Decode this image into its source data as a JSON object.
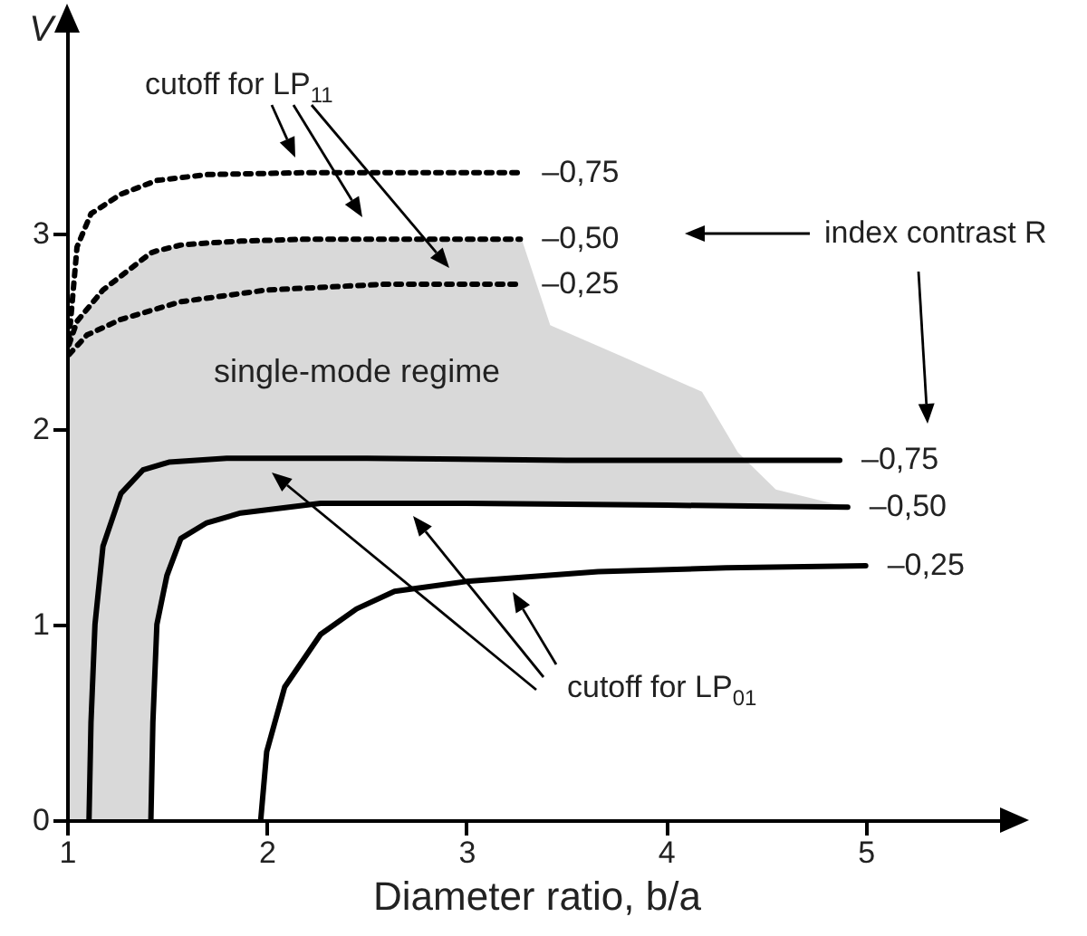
{
  "chart_data": {
    "type": "line",
    "xlabel": "Diameter ratio, b/a",
    "ylabel": "V",
    "xlim": [
      1,
      5.7
    ],
    "ylim": [
      0,
      4.1
    ],
    "xticks": [
      1,
      2,
      3,
      4,
      5
    ],
    "yticks": [
      0,
      1,
      2,
      3
    ],
    "grid": false,
    "annotations": [
      "cutoff for LP$_{11}$",
      "index contrast R",
      "single-mode regime",
      "cutoff for LP$_{01}$",
      {
        "text": "–0,75",
        "x": 4.87,
        "y": 1.84
      },
      {
        "text": "–0,50",
        "x": 4.91,
        "y": 1.6
      },
      {
        "text": "–0,25",
        "x": 5.0,
        "y": 1.3
      },
      {
        "text": "–0,75",
        "x": 3.27,
        "y": 3.31
      },
      {
        "text": "–0,50",
        "x": 3.27,
        "y": 2.97
      },
      {
        "text": "–0,25",
        "x": 3.27,
        "y": 2.74
      }
    ],
    "series": [
      {
        "color": "#000000",
        "line_style": "solid",
        "x": [
          1.11,
          1.12,
          1.14,
          1.18,
          1.27,
          1.38,
          1.51,
          1.8,
          2.5,
          3.5,
          4.87
        ],
        "values": [
          0,
          0.5,
          1.0,
          1.4,
          1.67,
          1.79,
          1.83,
          1.85,
          1.85,
          1.84,
          1.84
        ]
      },
      {
        "color": "#000000",
        "line_style": "solid",
        "x": [
          1.42,
          1.43,
          1.45,
          1.5,
          1.57,
          1.7,
          1.87,
          2.27,
          3.0,
          4.0,
          4.91
        ],
        "values": [
          0,
          0.5,
          1.0,
          1.25,
          1.44,
          1.52,
          1.57,
          1.62,
          1.62,
          1.61,
          1.6
        ]
      },
      {
        "color": "#000000",
        "line_style": "solid",
        "x": [
          1.97,
          2.0,
          2.09,
          2.27,
          2.45,
          2.64,
          3.0,
          3.66,
          4.3,
          5.0
        ],
        "values": [
          0,
          0.35,
          0.68,
          0.95,
          1.08,
          1.17,
          1.22,
          1.27,
          1.29,
          1.3
        ]
      },
      {
        "color": "#000000",
        "line_style": "dotted",
        "x": [
          1.01,
          1.05,
          1.12,
          1.27,
          1.45,
          1.7,
          2.2,
          3.27
        ],
        "values": [
          2.46,
          2.93,
          3.1,
          3.2,
          3.27,
          3.3,
          3.31,
          3.31
        ]
      },
      {
        "color": "#000000",
        "line_style": "dotted",
        "x": [
          1.0,
          1.01,
          1.05,
          1.18,
          1.42,
          1.45,
          1.57,
          1.7,
          1.87,
          2.2,
          2.27,
          2.6,
          3.0,
          3.27,
          3.28,
          3.42,
          3.78,
          4.18,
          4.36,
          4.55,
          4.91
        ],
        "values": [
          null,
          2.43,
          2.55,
          2.71,
          2.9,
          2.91,
          2.94,
          2.95,
          2.96,
          2.97,
          2.97,
          2.97,
          2.97,
          2.97,
          null,
          null,
          null,
          null,
          null,
          null,
          null
        ],
        "upper": [
          2.4,
          2.43,
          2.55,
          2.71,
          2.9,
          2.91,
          2.94,
          2.95,
          2.96,
          2.97,
          2.97,
          2.97,
          2.97,
          2.97,
          2.96,
          2.53,
          2.37,
          2.19,
          1.88,
          1.69,
          1.6
        ],
        "lower": [
          0,
          0,
          0,
          0,
          0,
          1.0,
          1.44,
          1.52,
          1.57,
          1.61,
          1.62,
          1.62,
          1.62,
          1.61,
          1.61,
          1.61,
          1.61,
          1.61,
          1.61,
          1.6,
          1.6
        ]
      },
      {
        "color": "#000000",
        "line_style": "dotted",
        "x": [
          1.01,
          1.1,
          1.27,
          1.57,
          2.0,
          2.6,
          3.27
        ],
        "values": [
          2.38,
          2.48,
          2.56,
          2.65,
          2.71,
          2.74,
          2.74
        ]
      }
    ]
  }
}
